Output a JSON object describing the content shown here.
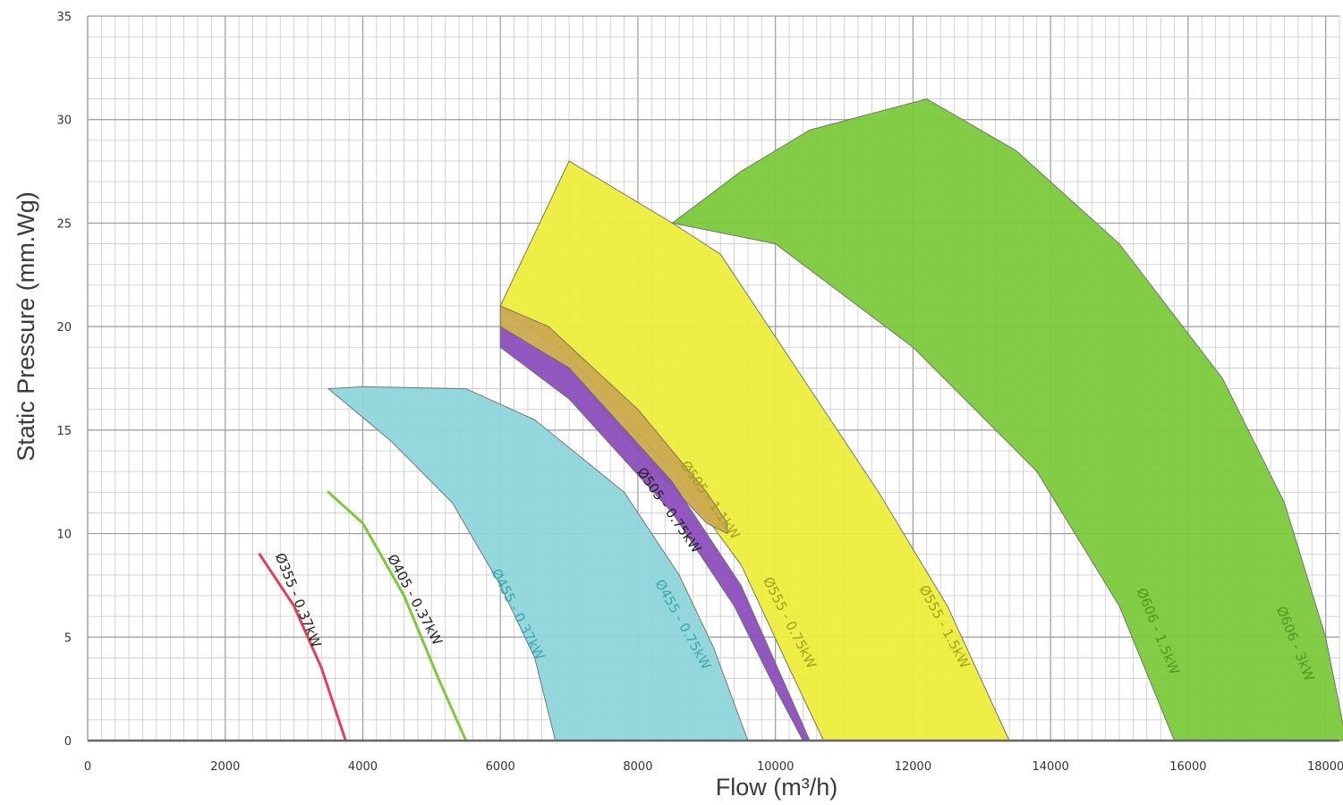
{
  "chart_data": {
    "type": "area",
    "title": "",
    "xlabel": "Flow (m³/h)",
    "ylabel": "Static Pressure  (mm.Wg)",
    "xlim": [
      0,
      18200
    ],
    "ylim": [
      0,
      35
    ],
    "x_ticks": [
      0,
      2000,
      4000,
      6000,
      8000,
      10000,
      12000,
      14000,
      16000,
      18000
    ],
    "y_ticks": [
      0,
      5,
      10,
      15,
      20,
      25,
      30,
      35
    ],
    "x_tick_labels": [
      "0",
      "2000",
      "4000",
      "6000",
      "8000",
      "10000",
      "12000",
      "14000",
      "16000",
      "18000"
    ],
    "y_tick_labels": [
      "0",
      "5",
      "10",
      "15",
      "20",
      "25",
      "30",
      "35"
    ],
    "grid": true,
    "series": [
      {
        "kind": "band",
        "fill": "#7cc93c",
        "upper": [
          [
            8500,
            25.0
          ],
          [
            9500,
            27.5
          ],
          [
            10500,
            29.5
          ],
          [
            12200,
            31.0
          ],
          [
            13500,
            28.5
          ],
          [
            15000,
            24.0
          ],
          [
            16500,
            17.5
          ],
          [
            17400,
            11.5
          ],
          [
            18000,
            5.0
          ],
          [
            18300,
            0
          ]
        ],
        "lower": [
          [
            8500,
            25.0
          ],
          [
            10000,
            24.0
          ],
          [
            12000,
            19.0
          ],
          [
            13800,
            13.0
          ],
          [
            15000,
            6.5
          ],
          [
            15800,
            0
          ]
        ]
      },
      {
        "kind": "band",
        "fill": "#eded3c",
        "upper": [
          [
            6000,
            21.0
          ],
          [
            7000,
            28.0
          ],
          [
            8500,
            25.0
          ],
          [
            9200,
            23.5
          ],
          [
            10300,
            18.0
          ],
          [
            11500,
            12.0
          ],
          [
            12500,
            6.5
          ],
          [
            13400,
            0
          ]
        ],
        "lower": [
          [
            6000,
            21.0
          ],
          [
            7000,
            18.5
          ],
          [
            8500,
            13.0
          ],
          [
            9500,
            8.5
          ],
          [
            10200,
            3.5
          ],
          [
            10700,
            0
          ]
        ]
      },
      {
        "kind": "band",
        "fill": "#caa94e",
        "upper": [
          [
            6000,
            21.0
          ],
          [
            6700,
            20.0
          ],
          [
            8000,
            16.0
          ],
          [
            9000,
            12.0
          ],
          [
            9300,
            10.5
          ]
        ],
        "lower": [
          [
            6000,
            20.0
          ],
          [
            7000,
            18.0
          ],
          [
            8000,
            14.0
          ],
          [
            9000,
            10.5
          ],
          [
            9300,
            10.0
          ]
        ]
      },
      {
        "kind": "band",
        "fill": "#8d4fbd",
        "upper": [
          [
            6000,
            20.0
          ],
          [
            7000,
            18.0
          ],
          [
            8500,
            12.5
          ],
          [
            9500,
            7.5
          ],
          [
            10100,
            3.0
          ],
          [
            10500,
            0
          ]
        ],
        "lower": [
          [
            6000,
            19.0
          ],
          [
            7000,
            16.5
          ],
          [
            8500,
            11.0
          ],
          [
            9400,
            6.5
          ],
          [
            10000,
            2.5
          ],
          [
            10400,
            0
          ]
        ]
      },
      {
        "kind": "band",
        "fill": "#8ed6dc",
        "upper": [
          [
            3500,
            17.0
          ],
          [
            4000,
            17.1
          ],
          [
            5500,
            17.0
          ],
          [
            6500,
            15.5
          ],
          [
            7800,
            12.0
          ],
          [
            8600,
            8.0
          ],
          [
            9100,
            4.5
          ],
          [
            9600,
            0
          ]
        ],
        "lower": [
          [
            3500,
            17.0
          ],
          [
            4400,
            14.5
          ],
          [
            5300,
            11.5
          ],
          [
            6000,
            7.5
          ],
          [
            6500,
            4.0
          ],
          [
            6800,
            0
          ]
        ]
      },
      {
        "kind": "line",
        "color": "#7cc93c",
        "points": [
          [
            3500,
            12.0
          ],
          [
            4000,
            10.5
          ],
          [
            4600,
            7.0
          ],
          [
            5100,
            3.0
          ],
          [
            5500,
            0
          ]
        ]
      },
      {
        "kind": "line",
        "color": "#e0415a",
        "points": [
          [
            2500,
            9.0
          ],
          [
            3000,
            6.5
          ],
          [
            3400,
            3.5
          ],
          [
            3750,
            0
          ]
        ]
      }
    ],
    "annotations": [
      {
        "text": "Ø355 - 0.37kW",
        "x": 3000,
        "y": 6.7,
        "rotation": 68,
        "color": "#222222"
      },
      {
        "text": "Ø405 - 0.37kW",
        "x": 4700,
        "y": 6.7,
        "rotation": 62,
        "color": "#222222"
      },
      {
        "text": "Ø455 - 0.37kW",
        "x": 6200,
        "y": 6.0,
        "rotation": 63,
        "color": "#3aa7b0"
      },
      {
        "text": "Ø455 - 0.75kW",
        "x": 8600,
        "y": 5.5,
        "rotation": 61,
        "color": "#3aa7b0"
      },
      {
        "text": "Ø505 - 0.75kW",
        "x": 8400,
        "y": 11.0,
        "rotation": 55,
        "color": "#222222"
      },
      {
        "text": "Ø505 - 1.1kW",
        "x": 9000,
        "y": 11.5,
        "rotation": 55,
        "color": "#a0a020"
      },
      {
        "text": "Ø555 - 0.75kW",
        "x": 10150,
        "y": 5.6,
        "rotation": 63,
        "color": "#a0a020"
      },
      {
        "text": "Ø555 - 1.5kW",
        "x": 12400,
        "y": 5.4,
        "rotation": 62,
        "color": "#a0a020"
      },
      {
        "text": "Ø606 - 1.5kW",
        "x": 15500,
        "y": 5.2,
        "rotation": 68,
        "color": "#4a9c20"
      },
      {
        "text": "Ø606 - 3kW",
        "x": 17500,
        "y": 4.6,
        "rotation": 68,
        "color": "#4a9c20"
      }
    ]
  }
}
